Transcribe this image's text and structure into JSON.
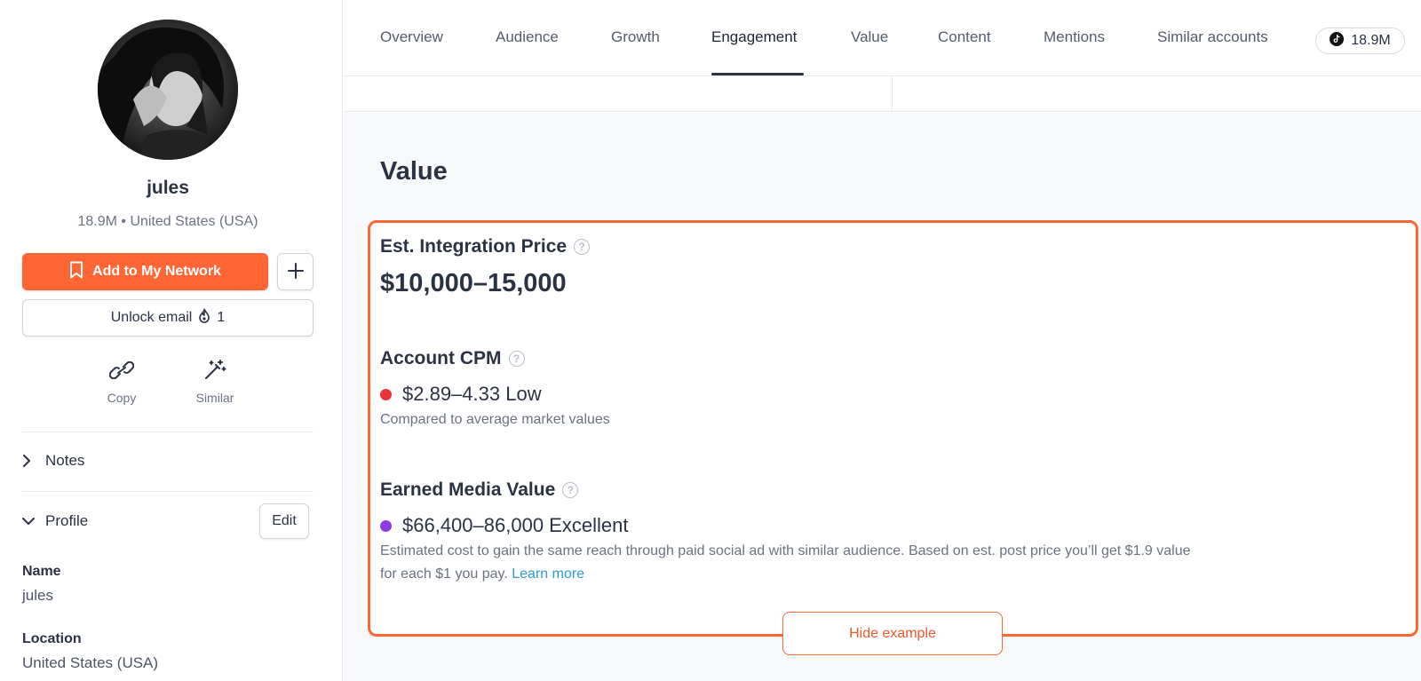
{
  "profile": {
    "username": "jules",
    "subinfo": "18.9M • United States (USA)",
    "add_network_label": "Add to My Network",
    "unlock_email_label": "Unlock email",
    "unlock_email_count": "1",
    "quick_actions": [
      {
        "label": "Copy",
        "icon": "link-icon"
      },
      {
        "label": "Similar",
        "icon": "magic-wand-icon"
      }
    ],
    "sections": {
      "notes": "Notes",
      "profile": "Profile",
      "edit_label": "Edit"
    },
    "fields": [
      {
        "label": "Name",
        "value": "jules"
      },
      {
        "label": "Location",
        "value": "United States (USA)"
      }
    ]
  },
  "nav": {
    "tabs": [
      {
        "label": "Overview"
      },
      {
        "label": "Audience"
      },
      {
        "label": "Growth"
      },
      {
        "label": "Engagement",
        "active": true
      },
      {
        "label": "Value"
      },
      {
        "label": "Content"
      },
      {
        "label": "Mentions"
      },
      {
        "label": "Similar accounts"
      }
    ],
    "followers": "18.9M",
    "platform_icon": "tiktok-icon"
  },
  "main": {
    "title": "Value",
    "integration": {
      "label": "Est. Integration Price",
      "value": "$10,000–15,000"
    },
    "cpm": {
      "label": "Account CPM",
      "value": "$2.89–4.33 Low",
      "dot_color": "#e8343a",
      "note": "Compared to average market values"
    },
    "emv": {
      "label": "Earned Media Value",
      "value": "$66,400–86,000 Excellent",
      "dot_color": "#8a3ee0",
      "note_line1": "Estimated cost to gain the same reach through paid social ad with similar audience. Based on est. post price you’ll get $1.9 value",
      "note_line2": "for each $1 you pay.",
      "learn_more": "Learn more"
    },
    "hide_example_label": "Hide example"
  },
  "colors": {
    "accent": "#ff6634",
    "link": "#2a9bd8"
  }
}
